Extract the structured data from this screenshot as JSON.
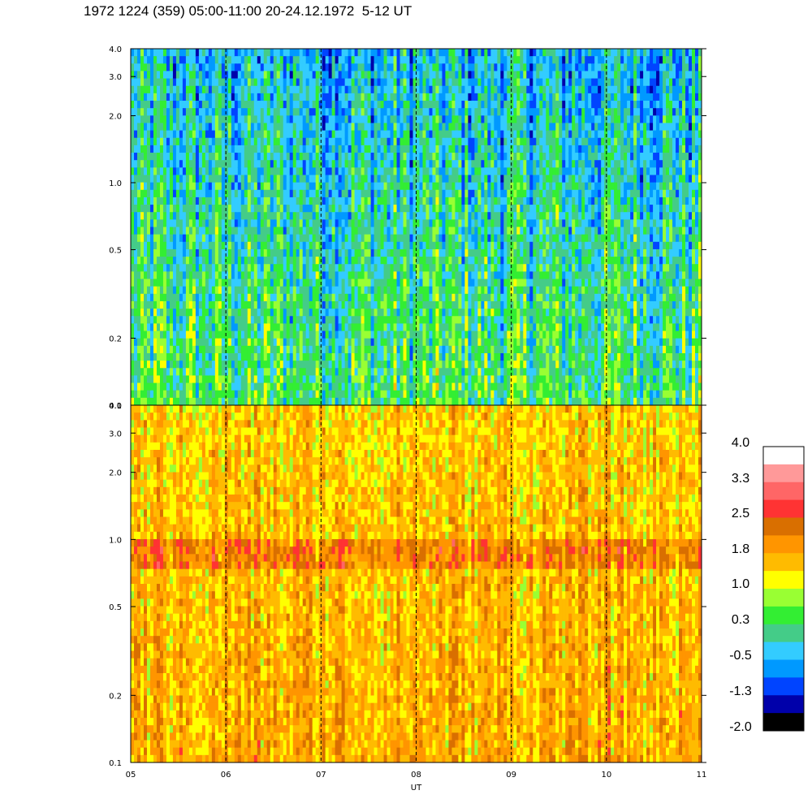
{
  "title": "1972 1224 (359) 05:00-11:00 20-24.12.1972  5-12 UT",
  "chart_data": [
    {
      "type": "heatmap",
      "panel": "top",
      "x_label": "",
      "x_range": [
        "05",
        "11"
      ],
      "y_scale": "log",
      "y_range": [
        0.1,
        4.0
      ],
      "y_ticks": [
        "4.0",
        "3.0",
        "2.0",
        "1.0",
        "0.5",
        "0.2",
        "0.1"
      ],
      "y_tick_values": [
        4.0,
        3.0,
        2.0,
        1.0,
        0.5,
        0.2,
        0.1
      ],
      "dashed_hour_markers": [
        "06",
        "07",
        "08",
        "09",
        "10"
      ],
      "dominant_levels": {
        "low_freq": 0.3,
        "mid_freq": 0.3,
        "high_freq": -0.5
      }
    },
    {
      "type": "heatmap",
      "panel": "bottom",
      "x_label": "UT",
      "x_ticks": [
        "05",
        "06",
        "07",
        "08",
        "09",
        "10",
        "11"
      ],
      "x_tick_values": [
        5,
        6,
        7,
        8,
        9,
        10,
        11
      ],
      "y_scale": "log",
      "y_range": [
        0.1,
        4.0
      ],
      "y_ticks": [
        "4.0",
        "3.0",
        "2.0",
        "1.0",
        "0.5",
        "0.2",
        "0.1"
      ],
      "y_tick_values": [
        4.0,
        3.0,
        2.0,
        1.0,
        0.5,
        0.2,
        0.1
      ],
      "dashed_hour_markers": [
        "06",
        "07",
        "08",
        "09",
        "10"
      ],
      "band_center": 0.85,
      "dominant_levels": {
        "low_freq": 1.8,
        "band": 2.2,
        "high_freq": 1.5
      }
    }
  ],
  "colorbar": {
    "labels": [
      "4.0",
      "3.3",
      "2.5",
      "1.8",
      "1.0",
      "0.3",
      "-0.5",
      "-1.3",
      "-2.0"
    ],
    "colors": [
      "#ffffff",
      "#ff9999",
      "#ff6666",
      "#ff3333",
      "#d96f00",
      "#ff9500",
      "#ffbb00",
      "#ffff00",
      "#99ff33",
      "#33ee33",
      "#44cc88",
      "#33ccff",
      "#0099ff",
      "#0044ff",
      "#0000aa",
      "#000000"
    ]
  }
}
